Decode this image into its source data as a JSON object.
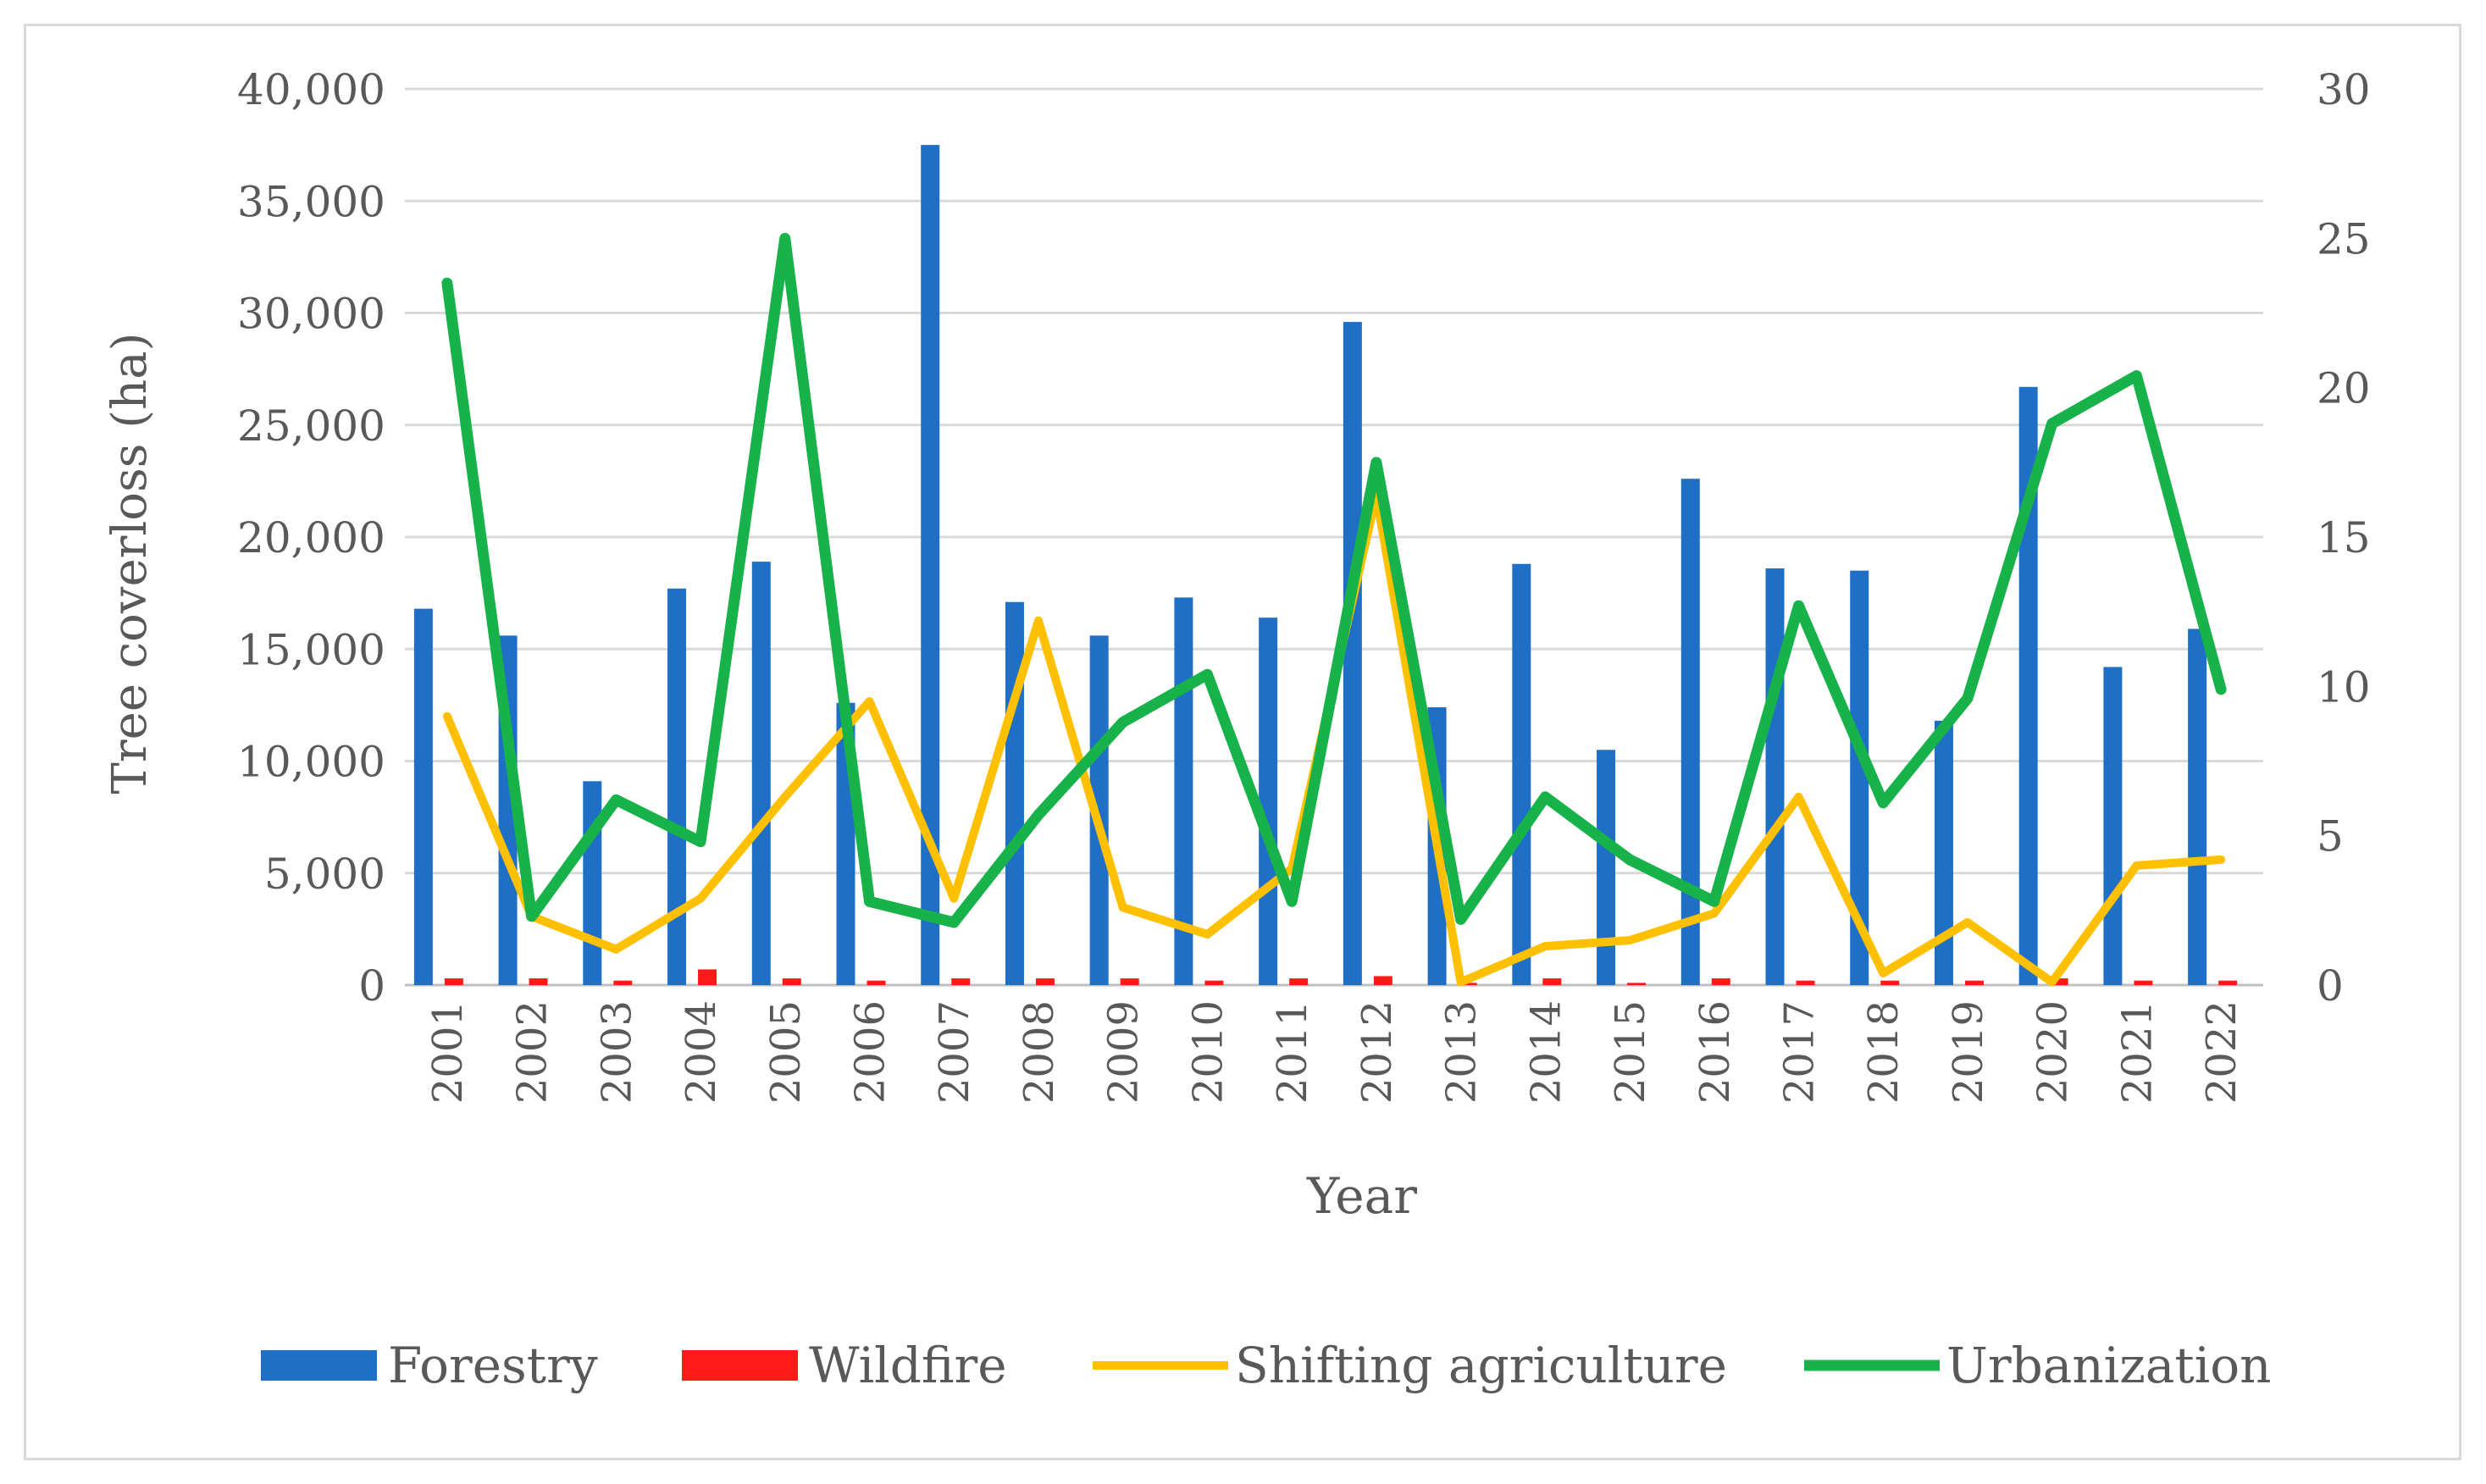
{
  "chart_data": {
    "type": "bar+line (dual axis)",
    "title": "",
    "xlabel": "Year",
    "ylabel": "Tree  coverloss (ha)",
    "y2label": "",
    "ylim": [
      0,
      40000
    ],
    "y2lim": [
      0,
      30
    ],
    "yticks": [
      "0",
      "5,000",
      "10,000",
      "15,000",
      "20,000",
      "25,000",
      "30,000",
      "35,000",
      "40,000"
    ],
    "y2ticks": [
      "0",
      "5",
      "10",
      "15",
      "20",
      "25",
      "30"
    ],
    "grid": true,
    "legend_position": "bottom",
    "categories": [
      "2001",
      "2002",
      "2003",
      "2004",
      "2005",
      "2006",
      "2007",
      "2008",
      "2009",
      "2010",
      "2011",
      "2012",
      "2013",
      "2014",
      "2015",
      "2016",
      "2017",
      "2018",
      "2019",
      "2020",
      "2021",
      "2022"
    ],
    "series": [
      {
        "name": "Forestry",
        "kind": "bar",
        "axis": "left",
        "color": "#1f6fc6",
        "values": [
          16800,
          15600,
          9100,
          17700,
          18900,
          12600,
          37500,
          17100,
          15600,
          17300,
          16400,
          29600,
          12400,
          18800,
          10500,
          22600,
          18600,
          18500,
          11800,
          26700,
          14200,
          15900
        ]
      },
      {
        "name": "Wildfire",
        "kind": "bar",
        "axis": "left",
        "color": "#ff1a1a",
        "values": [
          300,
          300,
          200,
          700,
          300,
          200,
          300,
          300,
          300,
          200,
          300,
          400,
          100,
          300,
          100,
          300,
          200,
          200,
          200,
          300,
          200,
          200
        ]
      },
      {
        "name": "Shifting agriculture",
        "kind": "line",
        "axis": "right",
        "color": "#ffc000",
        "values": [
          9.0,
          2.3,
          1.2,
          2.9,
          6.3,
          9.5,
          2.9,
          12.2,
          2.6,
          1.7,
          3.9,
          16.4,
          0.1,
          1.3,
          1.5,
          2.4,
          6.3,
          0.4,
          2.1,
          0.1,
          4.0,
          4.2
        ]
      },
      {
        "name": "Urbanization",
        "kind": "line",
        "axis": "right",
        "color": "#17b34a",
        "values": [
          23.5,
          2.3,
          6.2,
          4.8,
          25.0,
          2.8,
          2.1,
          5.7,
          8.8,
          10.4,
          2.8,
          17.5,
          2.2,
          6.3,
          4.2,
          2.8,
          12.7,
          6.1,
          9.6,
          18.8,
          20.4,
          9.9
        ]
      }
    ]
  }
}
